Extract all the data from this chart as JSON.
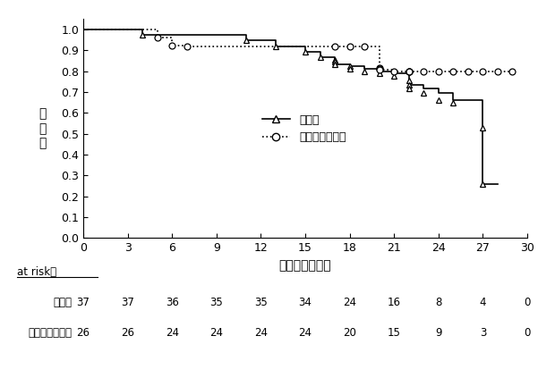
{
  "title": "",
  "xlabel": "生存期間（月）",
  "ylabel": "生\n存\n率",
  "xlim": [
    0,
    30
  ],
  "ylim": [
    0.0,
    1.05
  ],
  "yticks": [
    0.0,
    0.1,
    0.2,
    0.3,
    0.4,
    0.5,
    0.6,
    0.7,
    0.8,
    0.9,
    1.0
  ],
  "xticks": [
    0,
    3,
    6,
    9,
    12,
    15,
    18,
    21,
    24,
    27,
    30
  ],
  "group1_name": "本剤群",
  "group2_name": "エベロリムス群",
  "group1_times": [
    0,
    4,
    4,
    11,
    11,
    13,
    13,
    15,
    15,
    16,
    16,
    17,
    17,
    17,
    17,
    18,
    18,
    19,
    19,
    20,
    20,
    21,
    21,
    22,
    22,
    22,
    22,
    23,
    23,
    24,
    24,
    25,
    25,
    27,
    27,
    27,
    27,
    28,
    28
  ],
  "group1_surv": [
    1.0,
    1.0,
    0.973,
    0.973,
    0.946,
    0.946,
    0.919,
    0.919,
    0.892,
    0.892,
    0.865,
    0.865,
    0.855,
    0.844,
    0.833,
    0.833,
    0.822,
    0.822,
    0.811,
    0.811,
    0.8,
    0.8,
    0.789,
    0.789,
    0.778,
    0.757,
    0.736,
    0.736,
    0.716,
    0.716,
    0.695,
    0.695,
    0.66,
    0.66,
    0.65,
    0.53,
    0.26,
    0.26,
    0.26
  ],
  "group2_times": [
    0,
    5,
    5,
    6,
    6,
    7,
    7,
    14,
    14,
    17,
    17,
    18,
    18,
    19,
    19,
    20,
    20,
    20,
    20,
    21,
    21,
    22,
    22,
    22,
    22,
    23,
    23,
    24,
    24,
    25,
    25,
    26,
    26,
    27,
    27,
    28,
    28,
    29,
    29
  ],
  "group2_surv": [
    1.0,
    1.0,
    0.962,
    0.962,
    0.923,
    0.923,
    0.92,
    0.92,
    0.92,
    0.92,
    0.92,
    0.92,
    0.92,
    0.92,
    0.92,
    0.92,
    0.815,
    0.81,
    0.805,
    0.805,
    0.8,
    0.8,
    0.8,
    0.8,
    0.8,
    0.8,
    0.8,
    0.8,
    0.8,
    0.8,
    0.8,
    0.8,
    0.8,
    0.8,
    0.8,
    0.8,
    0.8,
    0.8,
    0.8
  ],
  "g1_marker_t": [
    4,
    11,
    13,
    15,
    16,
    17,
    17,
    17,
    18,
    18,
    19,
    20,
    21,
    22,
    22,
    22,
    23,
    24,
    25,
    27,
    27
  ],
  "g1_marker_s": [
    0.973,
    0.946,
    0.919,
    0.892,
    0.865,
    0.855,
    0.844,
    0.833,
    0.822,
    0.811,
    0.8,
    0.789,
    0.778,
    0.757,
    0.736,
    0.716,
    0.695,
    0.66,
    0.65,
    0.53,
    0.26
  ],
  "g2_marker_t": [
    5,
    6,
    7,
    17,
    18,
    19,
    20,
    20,
    20,
    21,
    22,
    22,
    22,
    23,
    24,
    25,
    26,
    27,
    28,
    29
  ],
  "g2_marker_s": [
    0.962,
    0.923,
    0.92,
    0.92,
    0.92,
    0.92,
    0.815,
    0.81,
    0.805,
    0.8,
    0.8,
    0.8,
    0.8,
    0.8,
    0.8,
    0.8,
    0.8,
    0.8,
    0.8,
    0.8
  ],
  "at_risk_label": "at risk数",
  "at_risk_times": [
    0,
    3,
    6,
    9,
    12,
    15,
    18,
    21,
    24,
    27,
    30
  ],
  "group1_at_risk": [
    37,
    37,
    36,
    35,
    35,
    34,
    24,
    16,
    8,
    4,
    0
  ],
  "group2_at_risk": [
    26,
    26,
    24,
    24,
    24,
    24,
    20,
    15,
    9,
    3,
    0
  ],
  "line_color": "#000000",
  "bg_color": "#ffffff"
}
